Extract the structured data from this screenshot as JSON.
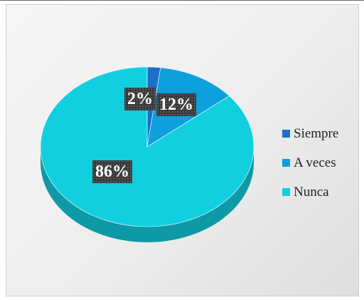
{
  "chart_data": {
    "type": "pie",
    "style": "3d",
    "categories": [
      "Siempre",
      "A veces",
      "Nunca"
    ],
    "values": [
      2,
      12,
      86
    ],
    "data_labels": [
      "2%",
      "12%",
      "86%"
    ],
    "colors": [
      "#1e6fc8",
      "#0ea0dc",
      "#12cfe0"
    ],
    "legend_position": "right"
  }
}
